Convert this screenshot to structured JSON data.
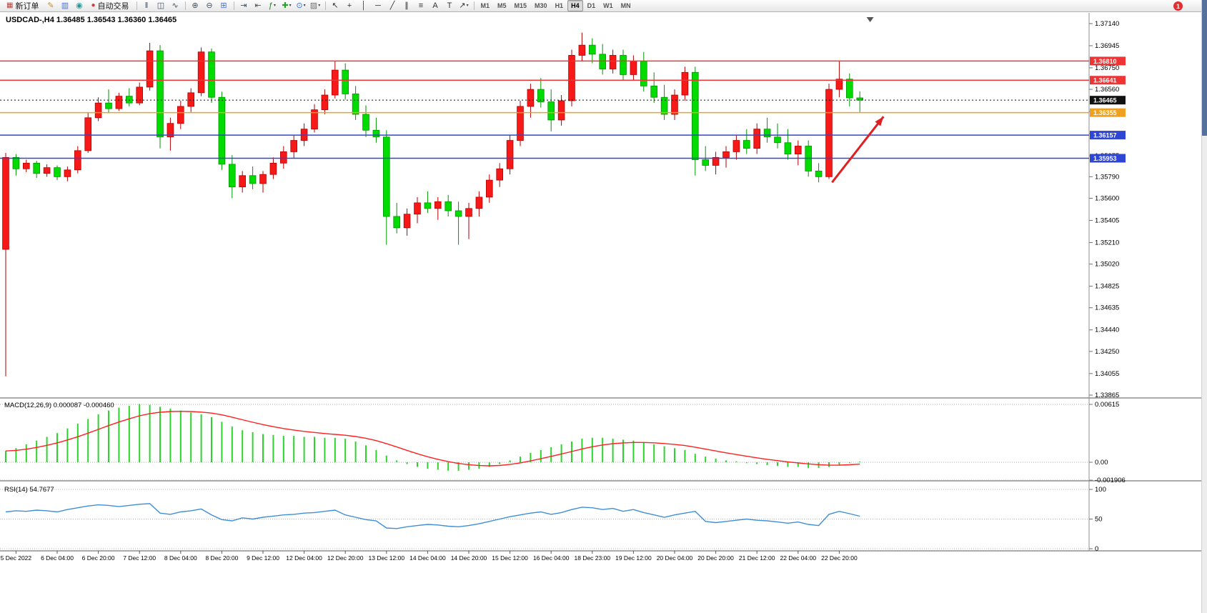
{
  "toolbar": {
    "new_order_label": "新订单",
    "autotrade_label": "自动交易",
    "notification_count": "1",
    "active_timeframe": "H4",
    "items": [
      {
        "type": "button",
        "name": "new-order-button",
        "glyph": "▦",
        "glyph_color": "#b8433c",
        "label": "新订单"
      },
      {
        "type": "icon",
        "name": "metaeditor-icon",
        "glyph": "✎",
        "color": "#c09020"
      },
      {
        "type": "icon",
        "name": "print-icon",
        "glyph": "▥",
        "color": "#4a6fd0"
      },
      {
        "type": "icon",
        "name": "sound-alert-icon",
        "glyph": "◉",
        "color": "#2a9898"
      },
      {
        "type": "button",
        "name": "autotrade-button",
        "glyph": "●",
        "glyph_color": "#d43c3c",
        "label": "自动交易"
      },
      {
        "type": "sep"
      },
      {
        "type": "icon",
        "name": "bar-chart-icon",
        "glyph": "ǁ",
        "color": "#405060"
      },
      {
        "type": "icon",
        "name": "candlestick-chart-icon",
        "glyph": "◫",
        "color": "#405060"
      },
      {
        "type": "icon",
        "name": "line-chart-icon",
        "glyph": "∿",
        "color": "#405060"
      },
      {
        "type": "sep"
      },
      {
        "type": "icon",
        "name": "zoom-in-icon",
        "glyph": "⊕",
        "color": "#405060"
      },
      {
        "type": "icon",
        "name": "zoom-out-icon",
        "glyph": "⊖",
        "color": "#405060"
      },
      {
        "type": "icon",
        "name": "tile-windows-icon",
        "glyph": "⊞",
        "color": "#4a6fd0"
      },
      {
        "type": "sep"
      },
      {
        "type": "icon",
        "name": "auto-scroll-icon",
        "glyph": "⇥",
        "color": "#405060"
      },
      {
        "type": "icon",
        "name": "chart-shift-icon",
        "glyph": "⇤",
        "color": "#405060"
      },
      {
        "type": "icon",
        "name": "indicators-icon",
        "glyph": "ƒ",
        "color": "#208020",
        "caret": true
      },
      {
        "type": "icon",
        "name": "add-indicator-icon",
        "glyph": "✚",
        "color": "#28a428",
        "caret": true
      },
      {
        "type": "icon",
        "name": "periods-icon",
        "glyph": "⊙",
        "color": "#3a6fd0",
        "caret": true
      },
      {
        "type": "icon",
        "name": "templates-icon",
        "glyph": "▨",
        "color": "#707070",
        "caret": true
      },
      {
        "type": "sep"
      },
      {
        "type": "icon",
        "name": "cursor-icon",
        "glyph": "↖",
        "color": "#303030"
      },
      {
        "type": "icon",
        "name": "crosshair-icon",
        "glyph": "+",
        "color": "#303030"
      },
      {
        "type": "icon",
        "name": "vertical-line-icon",
        "glyph": "│",
        "color": "#303030"
      },
      {
        "type": "icon",
        "name": "horizontal-line-icon",
        "glyph": "─",
        "color": "#303030"
      },
      {
        "type": "icon",
        "name": "trendline-icon",
        "glyph": "╱",
        "color": "#303030"
      },
      {
        "type": "icon",
        "name": "channel-icon",
        "glyph": "∥",
        "color": "#303030"
      },
      {
        "type": "icon",
        "name": "fibonacci-icon",
        "glyph": "≡",
        "color": "#303030"
      },
      {
        "type": "icon",
        "name": "text-icon",
        "glyph": "A",
        "color": "#303030"
      },
      {
        "type": "icon",
        "name": "text-label-icon",
        "glyph": "T",
        "color": "#303030"
      },
      {
        "type": "icon",
        "name": "arrows-icon",
        "glyph": "↗",
        "color": "#303030",
        "caret": true
      },
      {
        "type": "sep"
      },
      {
        "type": "tf",
        "label": "M1"
      },
      {
        "type": "tf",
        "label": "M5"
      },
      {
        "type": "tf",
        "label": "M15"
      },
      {
        "type": "tf",
        "label": "M30"
      },
      {
        "type": "tf",
        "label": "H1"
      },
      {
        "type": "tf",
        "label": "H4"
      },
      {
        "type": "tf",
        "label": "D1"
      },
      {
        "type": "tf",
        "label": "W1"
      },
      {
        "type": "tf",
        "label": "MN"
      }
    ]
  },
  "chart_data": {
    "type": "candlestick",
    "symbol": "USDCAD",
    "period": "H4",
    "title_line": "USDCAD-,H4 1.36485 1.36543 1.36360 1.36465",
    "current_bar": {
      "open": 1.36485,
      "high": 1.36543,
      "low": 1.3636,
      "close": 1.36465
    },
    "price_range": {
      "max": 1.3714,
      "min": 1.33865
    },
    "up_color": "#f71818",
    "up_stroke": "#b40000",
    "down_color": "#00dc00",
    "down_stroke": "#009600",
    "y_axis_labels": [
      "1.37140",
      "1.36945",
      "1.36750",
      "1.36560",
      "1.36365",
      "1.36170",
      "1.35975",
      "1.35790",
      "1.35600",
      "1.35405",
      "1.35210",
      "1.35020",
      "1.34825",
      "1.34635",
      "1.34440",
      "1.34250",
      "1.34055",
      "1.33865"
    ],
    "x_labels": [
      "5 Dec 2022",
      "6 Dec 04:00",
      "6 Dec 20:00",
      "7 Dec 12:00",
      "8 Dec 04:00",
      "8 Dec 20:00",
      "9 Dec 12:00",
      "12 Dec 04:00",
      "12 Dec 20:00",
      "13 Dec 12:00",
      "14 Dec 04:00",
      "14 Dec 20:00",
      "15 Dec 12:00",
      "16 Dec 04:00",
      "18 Dec 23:00",
      "19 Dec 12:00",
      "20 Dec 04:00",
      "20 Dec 20:00",
      "21 Dec 12:00",
      "22 Dec 04:00",
      "22 Dec 20:00"
    ],
    "x_label_first_bar": 1,
    "x_label_step": 4,
    "candles": [
      [
        1.3515,
        1.36,
        1.3403,
        1.3596
      ],
      [
        1.3596,
        1.3599,
        1.358,
        1.3586
      ],
      [
        1.3586,
        1.3594,
        1.3583,
        1.3591
      ],
      [
        1.3591,
        1.3593,
        1.3578,
        1.3582
      ],
      [
        1.3582,
        1.359,
        1.3579,
        1.3587
      ],
      [
        1.3587,
        1.3589,
        1.3576,
        1.3579
      ],
      [
        1.3579,
        1.3588,
        1.3575,
        1.3585
      ],
      [
        1.3585,
        1.3606,
        1.3582,
        1.3602
      ],
      [
        1.3602,
        1.3636,
        1.36,
        1.3631
      ],
      [
        1.3631,
        1.3649,
        1.3628,
        1.3644
      ],
      [
        1.3644,
        1.3656,
        1.3635,
        1.3639
      ],
      [
        1.3639,
        1.3653,
        1.3637,
        1.365
      ],
      [
        1.365,
        1.3657,
        1.3641,
        1.3644
      ],
      [
        1.3644,
        1.3662,
        1.3642,
        1.3658
      ],
      [
        1.3658,
        1.3697,
        1.3655,
        1.369
      ],
      [
        1.369,
        1.3695,
        1.3604,
        1.3614
      ],
      [
        1.3614,
        1.3631,
        1.3602,
        1.3626
      ],
      [
        1.3626,
        1.3646,
        1.3621,
        1.3641
      ],
      [
        1.3641,
        1.3657,
        1.3636,
        1.3653
      ],
      [
        1.3653,
        1.3693,
        1.365,
        1.3689
      ],
      [
        1.3689,
        1.3692,
        1.3644,
        1.3649
      ],
      [
        1.3649,
        1.3654,
        1.3585,
        1.359
      ],
      [
        1.359,
        1.3598,
        1.356,
        1.357
      ],
      [
        1.357,
        1.3584,
        1.3565,
        1.358
      ],
      [
        1.358,
        1.3588,
        1.3568,
        1.3573
      ],
      [
        1.3573,
        1.3584,
        1.3565,
        1.3581
      ],
      [
        1.3581,
        1.3596,
        1.3577,
        1.3591
      ],
      [
        1.3591,
        1.3606,
        1.3586,
        1.3601
      ],
      [
        1.3601,
        1.3616,
        1.3595,
        1.3611
      ],
      [
        1.3611,
        1.3626,
        1.3606,
        1.3621
      ],
      [
        1.3621,
        1.3643,
        1.3618,
        1.3638
      ],
      [
        1.3638,
        1.3656,
        1.3634,
        1.3651
      ],
      [
        1.3651,
        1.3681,
        1.3648,
        1.3673
      ],
      [
        1.3673,
        1.3679,
        1.3647,
        1.3652
      ],
      [
        1.3652,
        1.3659,
        1.3629,
        1.3634
      ],
      [
        1.3634,
        1.3642,
        1.3614,
        1.362
      ],
      [
        1.362,
        1.3631,
        1.3609,
        1.3614
      ],
      [
        1.3614,
        1.362,
        1.3519,
        1.3544
      ],
      [
        1.3544,
        1.3556,
        1.3529,
        1.3534
      ],
      [
        1.3534,
        1.3551,
        1.3527,
        1.3546
      ],
      [
        1.3546,
        1.3561,
        1.3538,
        1.3556
      ],
      [
        1.3556,
        1.3566,
        1.3547,
        1.3551
      ],
      [
        1.3551,
        1.3561,
        1.3541,
        1.3557
      ],
      [
        1.3557,
        1.3563,
        1.3544,
        1.3549
      ],
      [
        1.3549,
        1.3557,
        1.3519,
        1.3544
      ],
      [
        1.3544,
        1.3556,
        1.3524,
        1.3551
      ],
      [
        1.3551,
        1.3566,
        1.3544,
        1.3561
      ],
      [
        1.3561,
        1.3581,
        1.3556,
        1.3576
      ],
      [
        1.3576,
        1.3591,
        1.357,
        1.3586
      ],
      [
        1.3586,
        1.3616,
        1.3581,
        1.3611
      ],
      [
        1.3611,
        1.3646,
        1.3606,
        1.3641
      ],
      [
        1.3641,
        1.3661,
        1.3631,
        1.3656
      ],
      [
        1.3656,
        1.3666,
        1.364,
        1.3645
      ],
      [
        1.3645,
        1.3656,
        1.3619,
        1.3629
      ],
      [
        1.3629,
        1.3651,
        1.3624,
        1.3646
      ],
      [
        1.3646,
        1.3691,
        1.3641,
        1.3686
      ],
      [
        1.3686,
        1.3706,
        1.3681,
        1.3695
      ],
      [
        1.3695,
        1.3701,
        1.3679,
        1.3687
      ],
      [
        1.3687,
        1.3696,
        1.3669,
        1.3674
      ],
      [
        1.3674,
        1.3691,
        1.367,
        1.3686
      ],
      [
        1.3686,
        1.3691,
        1.3664,
        1.3669
      ],
      [
        1.3669,
        1.3686,
        1.3664,
        1.3681
      ],
      [
        1.3681,
        1.3689,
        1.3654,
        1.3659
      ],
      [
        1.3659,
        1.3671,
        1.3644,
        1.3649
      ],
      [
        1.3649,
        1.366,
        1.3629,
        1.3634
      ],
      [
        1.3634,
        1.3656,
        1.3629,
        1.3651
      ],
      [
        1.3651,
        1.3676,
        1.3646,
        1.3671
      ],
      [
        1.3671,
        1.3676,
        1.358,
        1.3594
      ],
      [
        1.3594,
        1.3606,
        1.3584,
        1.3589
      ],
      [
        1.3589,
        1.3601,
        1.3581,
        1.3596
      ],
      [
        1.3596,
        1.3606,
        1.3587,
        1.3601
      ],
      [
        1.3601,
        1.3616,
        1.3594,
        1.3611
      ],
      [
        1.3611,
        1.3621,
        1.3599,
        1.3604
      ],
      [
        1.3604,
        1.3626,
        1.3599,
        1.3621
      ],
      [
        1.3621,
        1.3631,
        1.3609,
        1.3614
      ],
      [
        1.3614,
        1.3626,
        1.3604,
        1.3609
      ],
      [
        1.3609,
        1.3621,
        1.3594,
        1.3599
      ],
      [
        1.3599,
        1.3611,
        1.3589,
        1.3606
      ],
      [
        1.3606,
        1.3611,
        1.3579,
        1.3584
      ],
      [
        1.3584,
        1.3591,
        1.3574,
        1.3579
      ],
      [
        1.3579,
        1.3661,
        1.3577,
        1.3656
      ],
      [
        1.3656,
        1.3681,
        1.3649,
        1.3665
      ],
      [
        1.3665,
        1.367,
        1.3641,
        1.36485
      ],
      [
        1.36485,
        1.36543,
        1.3636,
        1.36465
      ]
    ],
    "hlines": [
      {
        "price": 1.3681,
        "label": "1.36810",
        "color": "#ee3434",
        "style": "solid"
      },
      {
        "price": 1.36641,
        "label": "1.36641",
        "color": "#ee3434",
        "style": "solid"
      },
      {
        "price": 1.36465,
        "label": "1.36465",
        "color": "#111111",
        "style": "dotted"
      },
      {
        "price": 1.36355,
        "label": "1.36355",
        "color": "#f0a020",
        "style": "solid"
      },
      {
        "price": 1.36157,
        "label": "1.36157",
        "color": "#2f46d4",
        "style": "solid"
      },
      {
        "price": 1.35953,
        "label": "1.35953",
        "color": "#2f46d4",
        "style": "solid"
      }
    ],
    "arrow": {
      "from_bar": 80.3,
      "from_price": 1.3574,
      "to_bar": 85.3,
      "to_price": 1.3632,
      "color": "#e02020"
    },
    "shift_marker_bar": 84,
    "indicators": [
      {
        "type": "macd",
        "name": "MACD",
        "params": "12,26,9",
        "label": "MACD(12,26,9) 0.000087 -0.000460",
        "main_value": 8.7e-05,
        "signal_value": -0.00046,
        "hist_color": "#2ed32e",
        "signal_color": "#ff2020",
        "axis_labels": [
          "0.00615",
          "0.00",
          "-0.001906"
        ],
        "values": [
          0.0012,
          0.0015,
          0.0019,
          0.0023,
          0.0027,
          0.0031,
          0.0036,
          0.0041,
          0.0046,
          0.0051,
          0.0055,
          0.0058,
          0.006,
          0.0062,
          0.0061,
          0.0059,
          0.0057,
          0.0055,
          0.0053,
          0.0051,
          0.0048,
          0.0043,
          0.0038,
          0.0034,
          0.0032,
          0.003,
          0.0029,
          0.0028,
          0.0028,
          0.0027,
          0.0027,
          0.0026,
          0.0026,
          0.0025,
          0.0022,
          0.0018,
          0.0013,
          0.0007,
          0.0002,
          -0.0002,
          -0.0005,
          -0.0007,
          -0.0008,
          -0.0009,
          -0.0009,
          -0.0008,
          -0.0007,
          -0.0005,
          -0.0002,
          0.0002,
          0.0006,
          0.001,
          0.0013,
          0.0016,
          0.0019,
          0.0022,
          0.0025,
          0.0026,
          0.0026,
          0.0025,
          0.0024,
          0.0023,
          0.0021,
          0.0019,
          0.0017,
          0.0015,
          0.0013,
          0.0009,
          0.0006,
          0.0004,
          0.0002,
          0.0001,
          -0.0001,
          -0.0002,
          -0.0003,
          -0.0004,
          -0.0005,
          -0.0005,
          -0.0006,
          -0.0006,
          -0.0005,
          -0.0003,
          -0.0001,
          8.7e-05
        ]
      },
      {
        "type": "rsi",
        "name": "RSI",
        "params": "14",
        "label": "RSI(14) 54.7677",
        "value": 54.7677,
        "line_color": "#3f8fd8",
        "axis_labels": [
          "100",
          "50",
          "0"
        ],
        "values": [
          62,
          64,
          63,
          65,
          64,
          62,
          66,
          69,
          72,
          74,
          73,
          71,
          73,
          75,
          76,
          60,
          58,
          62,
          64,
          67,
          57,
          49,
          47,
          52,
          50,
          53,
          55,
          57,
          58,
          60,
          61,
          63,
          65,
          57,
          53,
          49,
          47,
          35,
          34,
          37,
          39,
          41,
          40,
          38,
          37,
          39,
          42,
          46,
          50,
          54,
          57,
          60,
          62,
          58,
          61,
          66,
          70,
          69,
          66,
          68,
          63,
          66,
          61,
          57,
          53,
          57,
          60,
          63,
          46,
          44,
          46,
          48,
          50,
          48,
          47,
          45,
          43,
          45,
          41,
          39,
          58,
          63,
          59,
          54.7677
        ]
      }
    ]
  }
}
